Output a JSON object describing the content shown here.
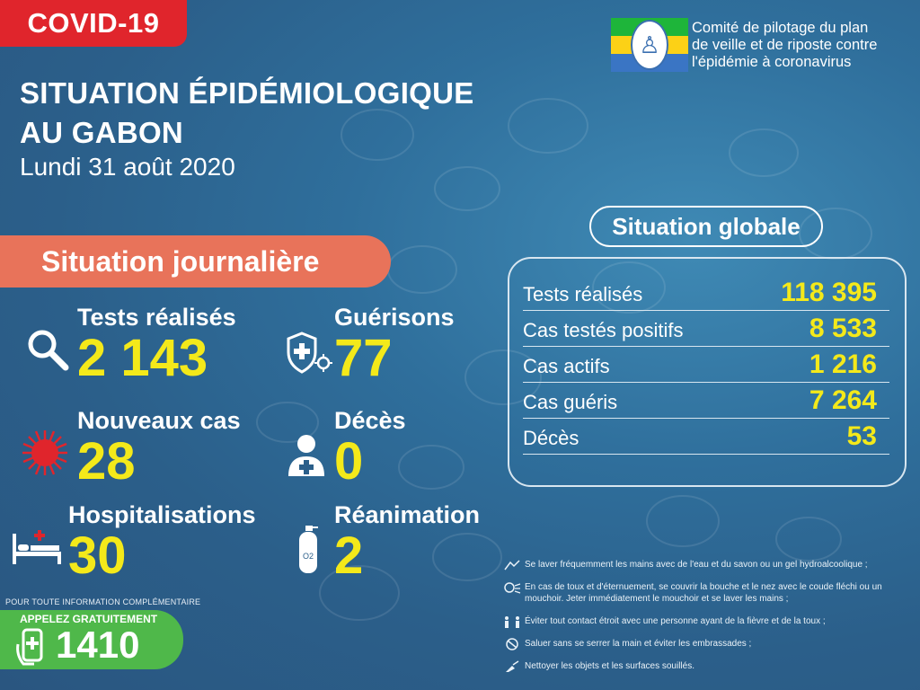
{
  "header": {
    "tag": "COVID-19",
    "title_line1": "SITUATION ÉPIDÉMIOLOGIQUE",
    "title_line2": "AU GABON",
    "date": "Lundi 31 août 2020"
  },
  "committee": {
    "line1": "Comité de pilotage du plan",
    "line2": "de veille et de riposte contre",
    "line3": "l'épidémie à coronavirus"
  },
  "journaliere": {
    "banner": "Situation journalière",
    "stats": [
      {
        "label": "Tests réalisés",
        "value": "2 143",
        "icon": "magnifier-icon"
      },
      {
        "label": "Guérisons",
        "value": "77",
        "icon": "shield-virus-icon"
      },
      {
        "label": "Nouveaux cas",
        "value": "28",
        "icon": "virus-icon"
      },
      {
        "label": "Décès",
        "value": "0",
        "icon": "person-cross-icon"
      },
      {
        "label": "Hospitalisations",
        "value": "30",
        "icon": "hospital-bed-icon"
      },
      {
        "label": "Réanimation",
        "value": "2",
        "icon": "oxygen-tank-icon"
      }
    ]
  },
  "globale": {
    "title": "Situation globale",
    "rows": [
      {
        "label": "Tests réalisés",
        "value": "118 395"
      },
      {
        "label": "Cas testés positifs",
        "value": "8 533"
      },
      {
        "label": "Cas actifs",
        "value": "1 216"
      },
      {
        "label": "Cas guéris",
        "value": "7 264"
      },
      {
        "label": "Décès",
        "value": "53"
      }
    ]
  },
  "contact": {
    "info": "POUR TOUTE INFORMATION COMPLÉMENTAIRE",
    "call_label": "APPELEZ GRATUITEMENT",
    "number": "1410"
  },
  "advice": [
    "Se laver fréquemment les mains avec de l'eau et du savon ou un gel hydroalcoolique ;",
    "En cas de toux et d'éternuement, se couvrir la bouche et le nez avec le coude fléchi ou un mouchoir. Jeter immédiatement le mouchoir et se laver les mains ;",
    "Éviter tout contact étroit avec une personne ayant de la fièvre et de la toux ;",
    "Saluer sans se serrer la main et éviter les embrassades ;",
    "Nettoyer les objets et les surfaces souillés."
  ],
  "colors": {
    "accent_yellow": "#f4e91a",
    "covid_red": "#e0252c",
    "banner_orange": "#e8735a",
    "call_green": "#4fb84a",
    "background_blue": "#2f6f9c"
  }
}
